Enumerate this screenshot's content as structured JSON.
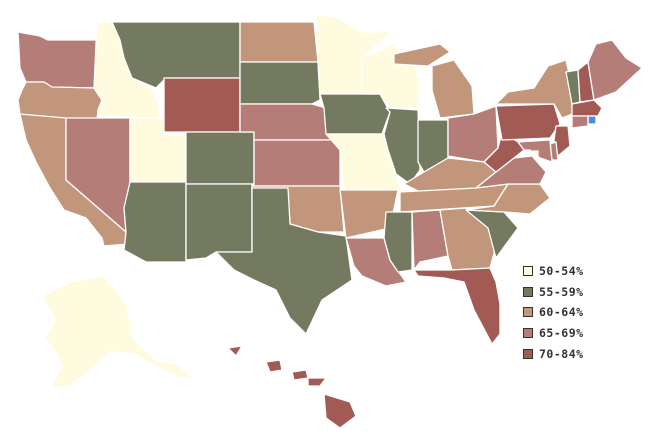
{
  "legend": {
    "items": [
      {
        "label": "50-54%",
        "color": "#fffbde"
      },
      {
        "label": "55-59%",
        "color": "#737a5f"
      },
      {
        "label": "60-64%",
        "color": "#c2967a"
      },
      {
        "label": "65-69%",
        "color": "#b47d78"
      },
      {
        "label": "70-84%",
        "color": "#a25a55"
      }
    ]
  },
  "highlight_color": "#4a90d8",
  "states": [
    {
      "code": "WA",
      "bin": 3
    },
    {
      "code": "OR",
      "bin": 2
    },
    {
      "code": "CA",
      "bin": 2
    },
    {
      "code": "ID",
      "bin": 0
    },
    {
      "code": "NV",
      "bin": 3
    },
    {
      "code": "UT",
      "bin": 0
    },
    {
      "code": "AZ",
      "bin": 1
    },
    {
      "code": "MT",
      "bin": 1
    },
    {
      "code": "WY",
      "bin": 4
    },
    {
      "code": "CO",
      "bin": 1
    },
    {
      "code": "NM",
      "bin": 1
    },
    {
      "code": "ND",
      "bin": 2
    },
    {
      "code": "SD",
      "bin": 1
    },
    {
      "code": "NE",
      "bin": 3
    },
    {
      "code": "KS",
      "bin": 3
    },
    {
      "code": "OK",
      "bin": 2
    },
    {
      "code": "TX",
      "bin": 1
    },
    {
      "code": "MN",
      "bin": 0
    },
    {
      "code": "IA",
      "bin": 1
    },
    {
      "code": "MO",
      "bin": 0
    },
    {
      "code": "AR",
      "bin": 2
    },
    {
      "code": "LA",
      "bin": 3
    },
    {
      "code": "WI",
      "bin": 0
    },
    {
      "code": "IL",
      "bin": 1
    },
    {
      "code": "MI",
      "bin": 2
    },
    {
      "code": "IN",
      "bin": 1
    },
    {
      "code": "OH",
      "bin": 3
    },
    {
      "code": "KY",
      "bin": 2
    },
    {
      "code": "TN",
      "bin": 2
    },
    {
      "code": "MS",
      "bin": 1
    },
    {
      "code": "AL",
      "bin": 3
    },
    {
      "code": "GA",
      "bin": 2
    },
    {
      "code": "FL",
      "bin": 4
    },
    {
      "code": "SC",
      "bin": 1
    },
    {
      "code": "NC",
      "bin": 2
    },
    {
      "code": "VA",
      "bin": 3
    },
    {
      "code": "WV",
      "bin": 4
    },
    {
      "code": "PA",
      "bin": 4
    },
    {
      "code": "NY",
      "bin": 2
    },
    {
      "code": "VT",
      "bin": 1
    },
    {
      "code": "NH",
      "bin": 4
    },
    {
      "code": "ME",
      "bin": 3
    },
    {
      "code": "MA",
      "bin": 4
    },
    {
      "code": "RI",
      "bin": -1
    },
    {
      "code": "CT",
      "bin": 3
    },
    {
      "code": "NJ",
      "bin": 4
    },
    {
      "code": "DE",
      "bin": 3
    },
    {
      "code": "MD",
      "bin": 3
    },
    {
      "code": "DC",
      "bin": 0
    },
    {
      "code": "AK",
      "bin": 0
    },
    {
      "code": "HI",
      "bin": 4
    }
  ]
}
